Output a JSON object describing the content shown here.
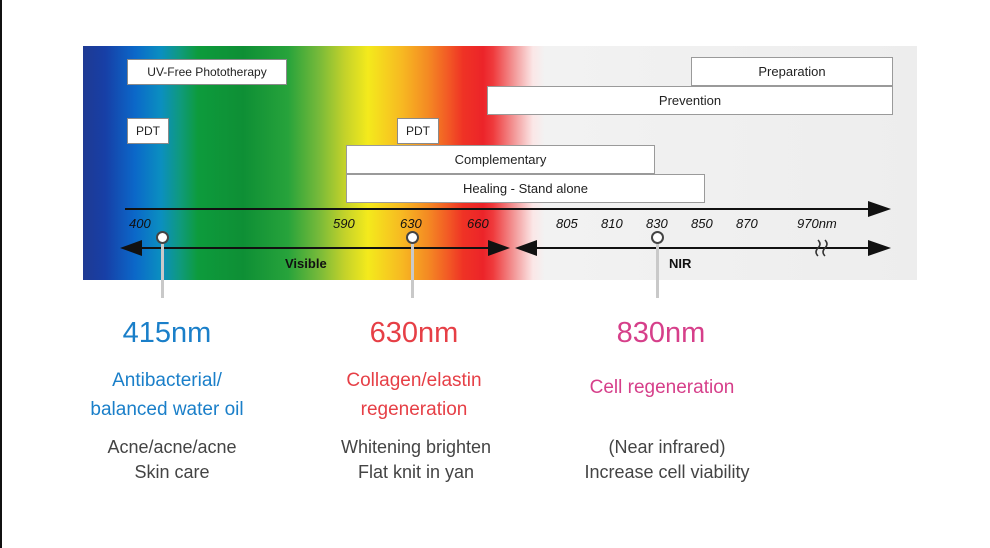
{
  "colors": {
    "blue_accent": "#1a7fc9",
    "red_accent": "#e63f46",
    "pink_accent": "#d63f8a"
  },
  "bars": {
    "uv_free": "UV-Free Phototherapy",
    "pdt_left": "PDT",
    "pdt_right": "PDT",
    "preparation": "Preparation",
    "prevention": "Prevention",
    "complementary": "Complementary",
    "healing": "Healing - Stand alone"
  },
  "scale": {
    "ticks": [
      "400",
      "590",
      "630",
      "660",
      "805",
      "810",
      "830",
      "850",
      "870",
      "970nm"
    ],
    "visible_label": "Visible",
    "nir_label": "NIR"
  },
  "columns": [
    {
      "wavelength": "415nm",
      "benefit_line1": "Antibacterial/",
      "benefit_line2": "balanced water oil",
      "desc_line1": "Acne/acne/acne",
      "desc_line2": "Skin care"
    },
    {
      "wavelength": "630nm",
      "benefit_line1": "Collagen/elastin",
      "benefit_line2": "regeneration",
      "desc_line1": "Whitening brighten",
      "desc_line2": "Flat knit in yan"
    },
    {
      "wavelength": "830nm",
      "benefit_line1": "Cell regeneration",
      "desc_line1": "(Near infrared)",
      "desc_line2": "Increase cell viability"
    }
  ]
}
